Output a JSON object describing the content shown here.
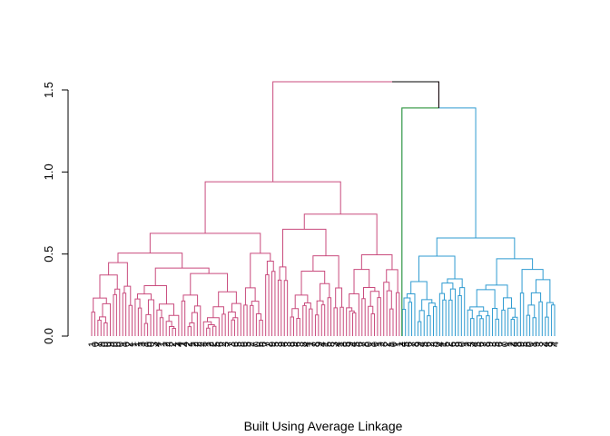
{
  "chart_data": {
    "type": "dendrogram",
    "title": "",
    "xlabel": "Built Using  Average  Linkage",
    "ylabel": "",
    "ylim": [
      0,
      1.55
    ],
    "yticks": [
      0.0,
      0.5,
      1.0,
      1.5
    ],
    "ytick_labels": [
      "0.0",
      "0.5",
      "1.0",
      "1.5"
    ],
    "grid": false,
    "legend": "none",
    "n_leaves": 150,
    "root_height": 1.55,
    "colors": {
      "cluster_1": "#c94b7d",
      "cluster_2": "#2f9bd1",
      "branch_2": "#3a9a2f",
      "root": "#000000"
    },
    "clusters": [
      {
        "name": "cluster_1",
        "color": "#c94b7d",
        "leaves": 100,
        "merge_height": 0.94
      },
      {
        "name": "cluster_2",
        "color": "#2f9bd1",
        "leaves": 50,
        "merge_height": 1.39
      }
    ],
    "leaf_labels": [
      "1",
      "0",
      "7",
      "9",
      "0",
      "0",
      "9",
      "0",
      "0",
      "0",
      "1",
      "0",
      "2",
      "1",
      "1",
      "1",
      "3",
      "1",
      "0",
      "0",
      "3",
      "4",
      "1",
      "1",
      "2",
      "3",
      "2",
      "1",
      "4",
      "1",
      "4",
      "2",
      "1",
      "2",
      "2",
      "2",
      "3",
      "1",
      "2",
      "2",
      "5",
      "6",
      "2",
      "3",
      "7",
      "3",
      "6",
      "5",
      "8",
      "6",
      "5",
      "2",
      "7",
      "0",
      "6",
      "6",
      "7",
      "2",
      "9",
      "5",
      "3",
      "9",
      "6",
      "3",
      "8",
      "9",
      "6",
      "3",
      "8",
      "4",
      "1",
      "7",
      "8",
      "9",
      "4",
      "1",
      "5",
      "8",
      "3",
      "4",
      "1",
      "8",
      "5",
      "9",
      "4",
      "5",
      "6",
      "7",
      "8",
      "0",
      "1",
      "0",
      "1",
      "2",
      "3",
      "2",
      "1",
      "0",
      "1",
      "1",
      "4",
      "5",
      "6",
      "7",
      "8",
      "9",
      "4",
      "5",
      "6",
      "2",
      "3",
      "0",
      "4",
      "1",
      "5",
      "2",
      "6",
      "8",
      "9",
      "0",
      "1",
      "2",
      "3",
      "4",
      "5",
      "6",
      "7",
      "8",
      "9",
      "3",
      "5",
      "6",
      "7",
      "0",
      "1",
      "2",
      "4",
      "8",
      "9",
      "5",
      "6",
      "0",
      "1",
      "9",
      "3",
      "2",
      "4",
      "8",
      "9",
      "4"
    ]
  }
}
